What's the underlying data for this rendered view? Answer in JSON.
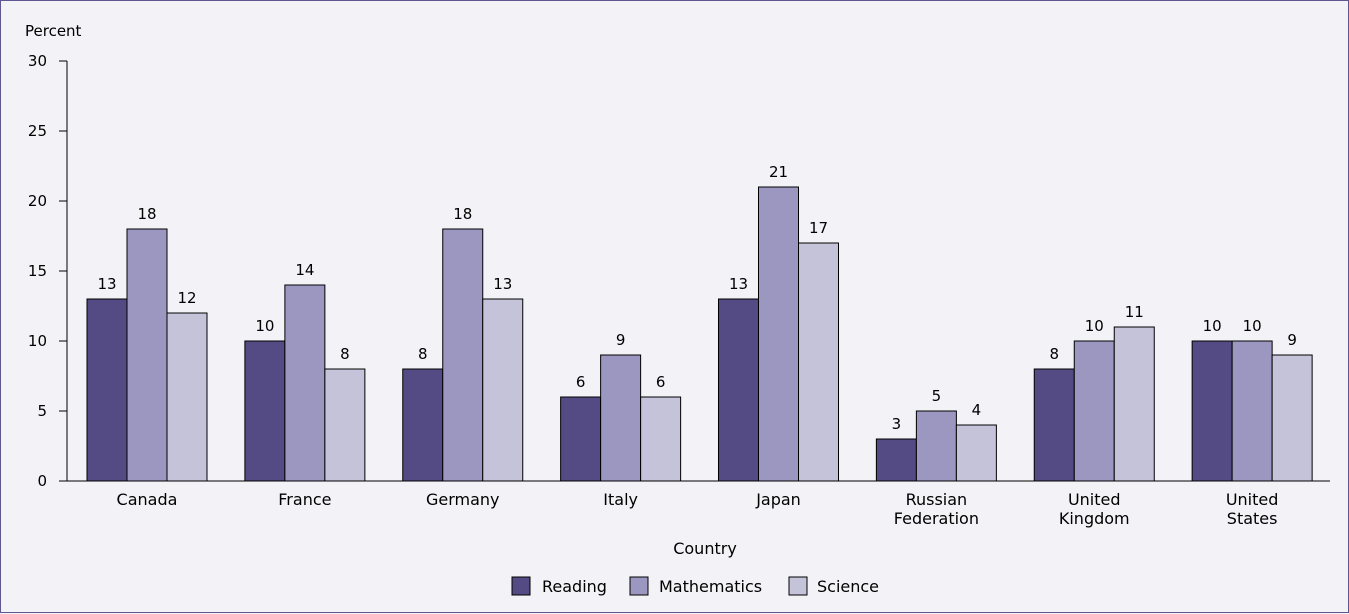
{
  "chart_data": {
    "type": "bar",
    "ylabel": "Percent",
    "xlabel": "Country",
    "ylim": [
      0,
      30
    ],
    "yticks": [
      0,
      5,
      10,
      15,
      20,
      25,
      30
    ],
    "categories": [
      [
        "Canada"
      ],
      [
        "France"
      ],
      [
        "Germany"
      ],
      [
        "Italy"
      ],
      [
        "Japan"
      ],
      [
        "Russian",
        "Federation"
      ],
      [
        "United",
        "Kingdom"
      ],
      [
        "United",
        "States"
      ]
    ],
    "series": [
      {
        "name": "Reading",
        "color": "#544b84",
        "values": [
          13,
          10,
          8,
          6,
          13,
          3,
          8,
          10
        ]
      },
      {
        "name": "Mathematics",
        "color": "#9b97c1",
        "values": [
          18,
          14,
          18,
          9,
          21,
          5,
          10,
          10
        ]
      },
      {
        "name": "Science",
        "color": "#c5c3da",
        "values": [
          12,
          8,
          13,
          6,
          17,
          4,
          11,
          9
        ]
      }
    ],
    "legend_position": "bottom",
    "grid": false
  }
}
